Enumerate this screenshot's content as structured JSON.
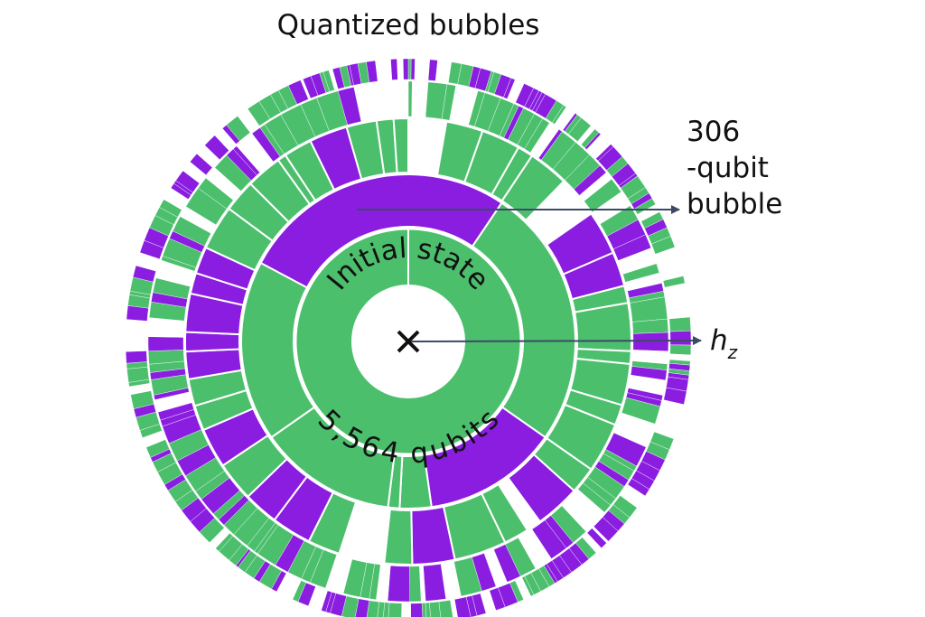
{
  "title": "Quantized bubbles",
  "bubble_label": [
    "306",
    "-qubit",
    "bubble"
  ],
  "field_label": {
    "symbol": "h",
    "subscript": "z"
  },
  "center_ring": {
    "top": "Initial state",
    "bottom": "5,564 qubits"
  }
}
